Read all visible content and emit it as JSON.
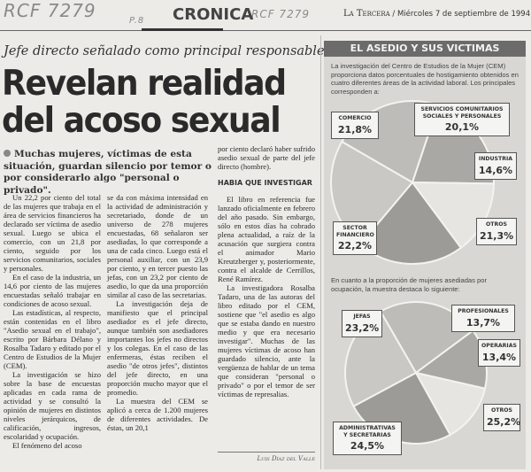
{
  "annotations": {
    "handwritten_1": "RCF 7279",
    "handwritten_2": "P.8",
    "handwritten_3": "RCF 7279"
  },
  "header": {
    "section": "CRONICA",
    "publication": "La Tercera",
    "date": "/ Miércoles 7 de septiembre de 1994"
  },
  "article": {
    "kicker": "Jefe directo señalado como principal responsable",
    "headline_1": "Revelan realidad",
    "headline_2": "del acoso sexual",
    "deck": "Muchas mujeres, víctimas de esta situación, guardan silencio por temor o por considerarlo algo \"personal o privado\".",
    "col1": [
      "Un 22,2 por ciento del total de las mujeres que trabaja en el área de servicios financieros ha declarado ser víctima de asedio sexual. Luego se ubica el comercio, con un 21,8 por ciento, seguido por los servicios comunitarios, sociales y personales.",
      "En el caso de la industria, un 14,6 por ciento de las mujeres encuestadas señaló trabajar en condiciones de acoso sexual.",
      "Las estadísticas, al respecto, están contenidas en el libro \"Asedio sexual en el trabajo\", escrito por Bárbara Délano y Rosalba Tadaro y editado por el Centro de Estudios de la Mujer (CEM).",
      "La investigación se hizo sobre la base de encuestas aplicadas en cada rama de actividad y se consultó la opinión de mujeres en distintos niveles jerárquicos, de calificación, ingresos, escolaridad y ocupación.",
      "El fenómeno del acoso"
    ],
    "col2": [
      "se da con máxima intensidad en la actividad de administración y secretariado, donde de un universo de 278 mujeres encuestadas, 68 señalaron ser asediadas, lo que corresponde a una de cada cinco. Luego está el personal auxiliar, con un 23,9 por ciento, y en tercer puesto las jefas, con un 23,2 por ciento de asedio, lo que da una proporción similar al caso de las secretarias.",
      "La investigación deja de manifiesto que el principal asediador es el jefe directo, aunque también son asediadores importantes los jefes no directos y los colegas. En el caso de las enfermeras, éstas reciben el asedio \"de otros jefes\", distintos del jefe directo, en una proporción mucho mayor que el promedio.",
      "La muestra del CEM se aplicó a cerca de 1.200 mujeres de diferentes actividades. De éstas, un 20,1"
    ],
    "col3_lead": "por ciento declaró haber sufrido asedio sexual de parte del jefe directo (hombre).",
    "subhead": "HABIA QUE INVESTIGAR",
    "col3": [
      "El libro en referencia fue lanzado oficialmente en febrero del año pasado. Sin embargo, sólo en estos días ha cobrado plena actualidad, a raíz de la acusación que surgiera contra el animador Mario Kreutzberger y, posteriormente, contra el alcalde de Cerrillos, René Ramírez.",
      "La investigadora Rosalba Tadaro, una de las autoras del libro editado por el CEM, sostiene que \"el asedio es algo que se estaba dando en nuestro medio y que era necesario investigar\". Muchas de las mujeres víctimas de acoso han guardado silencio, ante la vergüenza de hablar de un tema que consideran \"personal o privado\" o por el temor de ser víctimas de represalias."
    ],
    "byline": "Luis Díaz del Valle"
  },
  "infographic": {
    "title": "EL ASEDIO Y SUS VICTIMAS",
    "intro_1": "La investigación del Centro de Estudios de la Mujer (CEM) proporciona datos porcentuales de hostigamiento obtenidos en cuatro diferentes áreas de la actividad laboral. Los principales corresponden a:",
    "intro_2": "En cuanto a la proporción de mujeres asediadas por ocupación, la muestra destaca lo siguiente:",
    "colors": {
      "title_bar": "#6b6b6b",
      "panel": "#d8d7d3"
    }
  },
  "chart_data": [
    {
      "type": "pie",
      "categories": [
        "Comercio",
        "Servicios comunitarios sociales y personales",
        "Industria",
        "Otros",
        "Sector financiero"
      ],
      "labels": [
        "COMERCIO",
        "SERVICIOS COMUNITARIOS SOCIALES Y PERSONALES",
        "INDUSTRIA",
        "OTROS",
        "SECTOR FINANCIERO"
      ],
      "values": [
        21.8,
        20.1,
        14.6,
        21.3,
        22.2
      ],
      "value_labels": [
        "21,8%",
        "20,1%",
        "14,6%",
        "21,3%",
        "22,2%"
      ]
    },
    {
      "type": "pie",
      "categories": [
        "Jefas",
        "Profesionales",
        "Operarias",
        "Otros",
        "Administrativas y secretarias"
      ],
      "labels": [
        "JEFAS",
        "PROFESIONALES",
        "OPERARIAS",
        "OTROS",
        "ADMINISTRATIVAS Y SECRETARIAS"
      ],
      "values": [
        23.2,
        13.7,
        13.4,
        25.2,
        24.5
      ],
      "value_labels": [
        "23,2%",
        "13,7%",
        "13,4%",
        "25,2%",
        "24,5%"
      ]
    }
  ]
}
